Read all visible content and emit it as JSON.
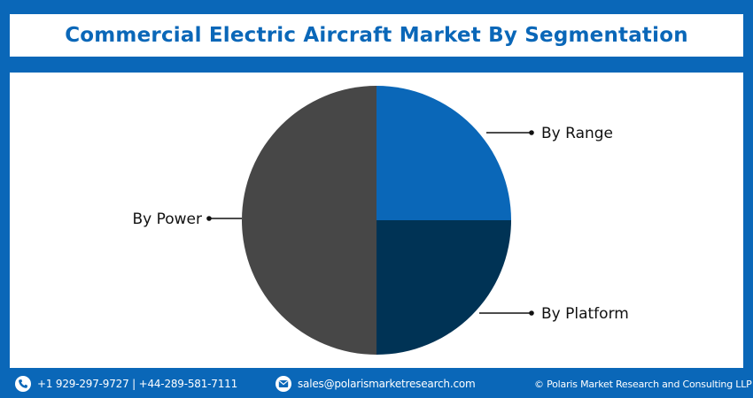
{
  "title": "Commercial Electric Aircraft Market By Segmentation",
  "chart_data": {
    "type": "pie",
    "title": "Commercial Electric Aircraft Market By Segmentation",
    "slices": [
      {
        "label": "By Range",
        "value": 25,
        "color": "#0a67b8"
      },
      {
        "label": "By Platform",
        "value": 25,
        "color": "#003355"
      },
      {
        "label": "By Power",
        "value": 50,
        "color": "#474747"
      }
    ],
    "start_angle_deg": 0,
    "direction": "clockwise"
  },
  "footer": {
    "phone": "+1 929-297-9727 | +44-289-581-7111",
    "email": "sales@polarismarketresearch.com",
    "copyright": "© Polaris Market Research and Consulting LLP",
    "phone_icon": "phone-icon",
    "email_icon": "email-icon"
  },
  "colors": {
    "background": "#0a67b8",
    "title_text": "#0a67b8",
    "panel": "#ffffff"
  }
}
